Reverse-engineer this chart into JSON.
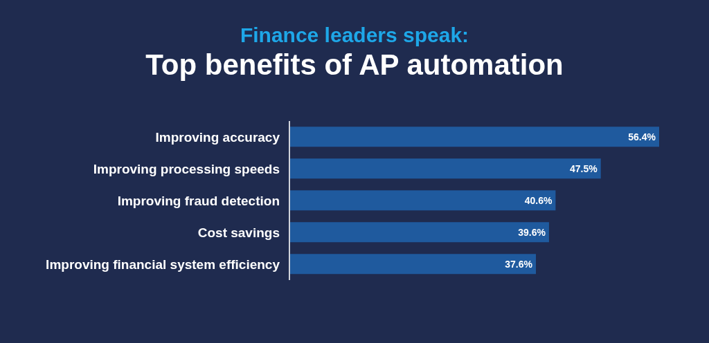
{
  "chart_data": {
    "type": "bar",
    "orientation": "horizontal",
    "subtitle": "Finance leaders speak:",
    "title": "Top benefits of AP automation",
    "categories": [
      "Improving accuracy",
      "Improving processing speeds",
      "Improving fraud detection",
      "Cost savings",
      "Improving financial system efficiency"
    ],
    "values": [
      56.4,
      47.5,
      40.6,
      39.6,
      37.6
    ],
    "color": "#1f5a9e",
    "data_labels": true,
    "value_labels": [
      "56.4%",
      "47.5%",
      "40.6%",
      "39.6%",
      "37.6%"
    ]
  }
}
